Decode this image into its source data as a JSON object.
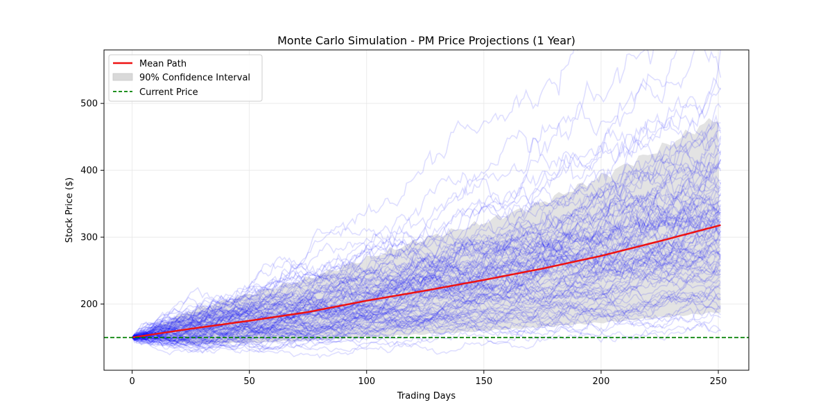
{
  "chart_data": {
    "type": "line",
    "title": "Monte Carlo Simulation - PM Price Projections (1 Year)",
    "xlabel": "Trading Days",
    "ylabel": "Stock Price ($)",
    "xlim": [
      -12,
      263
    ],
    "ylim": [
      101,
      580
    ],
    "xticks": [
      0,
      50,
      100,
      150,
      200,
      250
    ],
    "yticks": [
      200,
      300,
      400,
      500
    ],
    "grid": true,
    "legend_placement": "top-left",
    "legend": [
      "Mean Path",
      "90% Confidence Interval",
      "Current Price"
    ],
    "colors": {
      "mean": "#ee1111",
      "band": "#d9d9d9",
      "paths": "#0000ff",
      "current": "#008000"
    },
    "current_price": 150,
    "num_paths": 100,
    "start_price": 150,
    "daily_drift": 0.00304,
    "daily_volatility": 0.0184,
    "mean_path": [
      {
        "x": 0,
        "y": 150
      },
      {
        "x": 25,
        "y": 163
      },
      {
        "x": 50,
        "y": 175
      },
      {
        "x": 75,
        "y": 188
      },
      {
        "x": 100,
        "y": 205
      },
      {
        "x": 125,
        "y": 220
      },
      {
        "x": 150,
        "y": 236
      },
      {
        "x": 175,
        "y": 253
      },
      {
        "x": 200,
        "y": 272
      },
      {
        "x": 225,
        "y": 294
      },
      {
        "x": 251,
        "y": 318
      }
    ],
    "confidence_band": [
      {
        "x": 0,
        "lower": 150,
        "upper": 150
      },
      {
        "x": 25,
        "lower": 140,
        "upper": 190
      },
      {
        "x": 50,
        "lower": 142,
        "upper": 215
      },
      {
        "x": 75,
        "lower": 146,
        "upper": 238
      },
      {
        "x": 100,
        "lower": 150,
        "upper": 268
      },
      {
        "x": 125,
        "lower": 155,
        "upper": 298
      },
      {
        "x": 150,
        "lower": 160,
        "upper": 322
      },
      {
        "x": 175,
        "lower": 166,
        "upper": 352
      },
      {
        "x": 200,
        "lower": 172,
        "upper": 390
      },
      {
        "x": 225,
        "lower": 180,
        "upper": 432
      },
      {
        "x": 251,
        "lower": 188,
        "upper": 482
      }
    ]
  }
}
